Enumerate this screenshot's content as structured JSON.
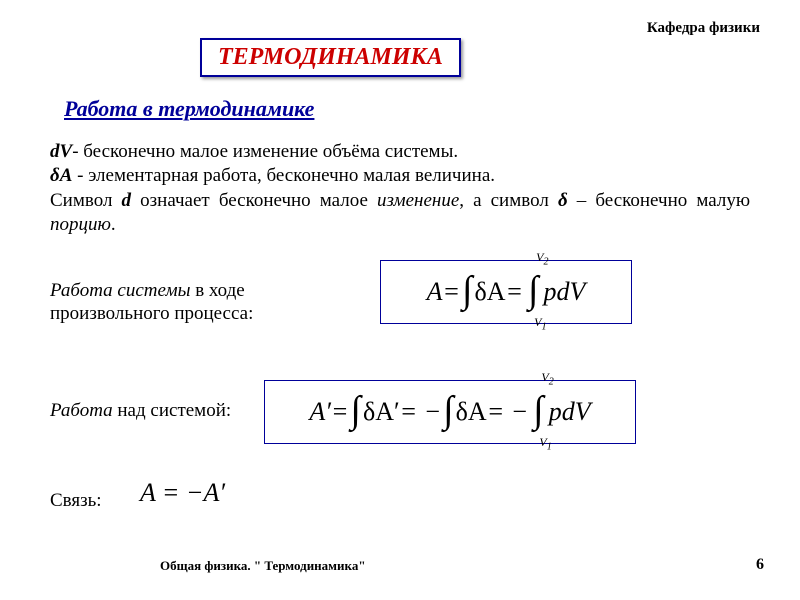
{
  "dept": "Кафедра физики",
  "title": "ТЕРМОДИНАМИКА",
  "subtitle": "Работа в термодинамике",
  "defs": {
    "dV_sym": "dV",
    "dV_text": "- бесконечно малое изменение объёма системы.",
    "dA_sym": "δA",
    "dA_text": " - элементарная работа, бесконечно малая величина.",
    "line3a": "Символ ",
    "d_sym": "d",
    "line3b": " означает бесконечно малое ",
    "izm": "изменение",
    "line3c": ", а символ ",
    "delta_sym": "δ",
    "line3d": " – бесконечно малую ",
    "por": "порцию",
    "dot": "."
  },
  "labels": {
    "row1_ital": "Работа системы",
    "row1_rest": " в ходе произвольного процесса:",
    "row2_ital": "Работа",
    "row2_rest": " над системой:",
    "row3": "Связь:"
  },
  "formulas": {
    "f1": {
      "A": "A",
      "eq": " = ",
      "int": "∫",
      "dA": "δA",
      "eq2": " = ",
      "V1": "V",
      "one": "1",
      "V2": "V",
      "two": "2",
      "pdV": "pdV"
    },
    "f2": {
      "Ap": "A′",
      "eq": " = ",
      "int": "∫",
      "dAp": "δA′",
      "eq2": " = −",
      "dA": "δA",
      "eq3": " = −",
      "V1": "V",
      "one": "1",
      "V2": "V",
      "two": "2",
      "pdV": "pdV"
    },
    "f3": "A = −A′"
  },
  "footer": "Общая физика. \" Термодинамика\"",
  "page": "6",
  "colors": {
    "border": "#000099",
    "title": "#cc0000",
    "subtitle": "#000099",
    "text": "#000000",
    "bg": "#ffffff"
  },
  "typography": {
    "title_size_pt": 24,
    "subtitle_size_pt": 22,
    "body_size_pt": 19,
    "formula_size_pt": 26,
    "footer_size_pt": 13,
    "font_family": "Times New Roman"
  }
}
